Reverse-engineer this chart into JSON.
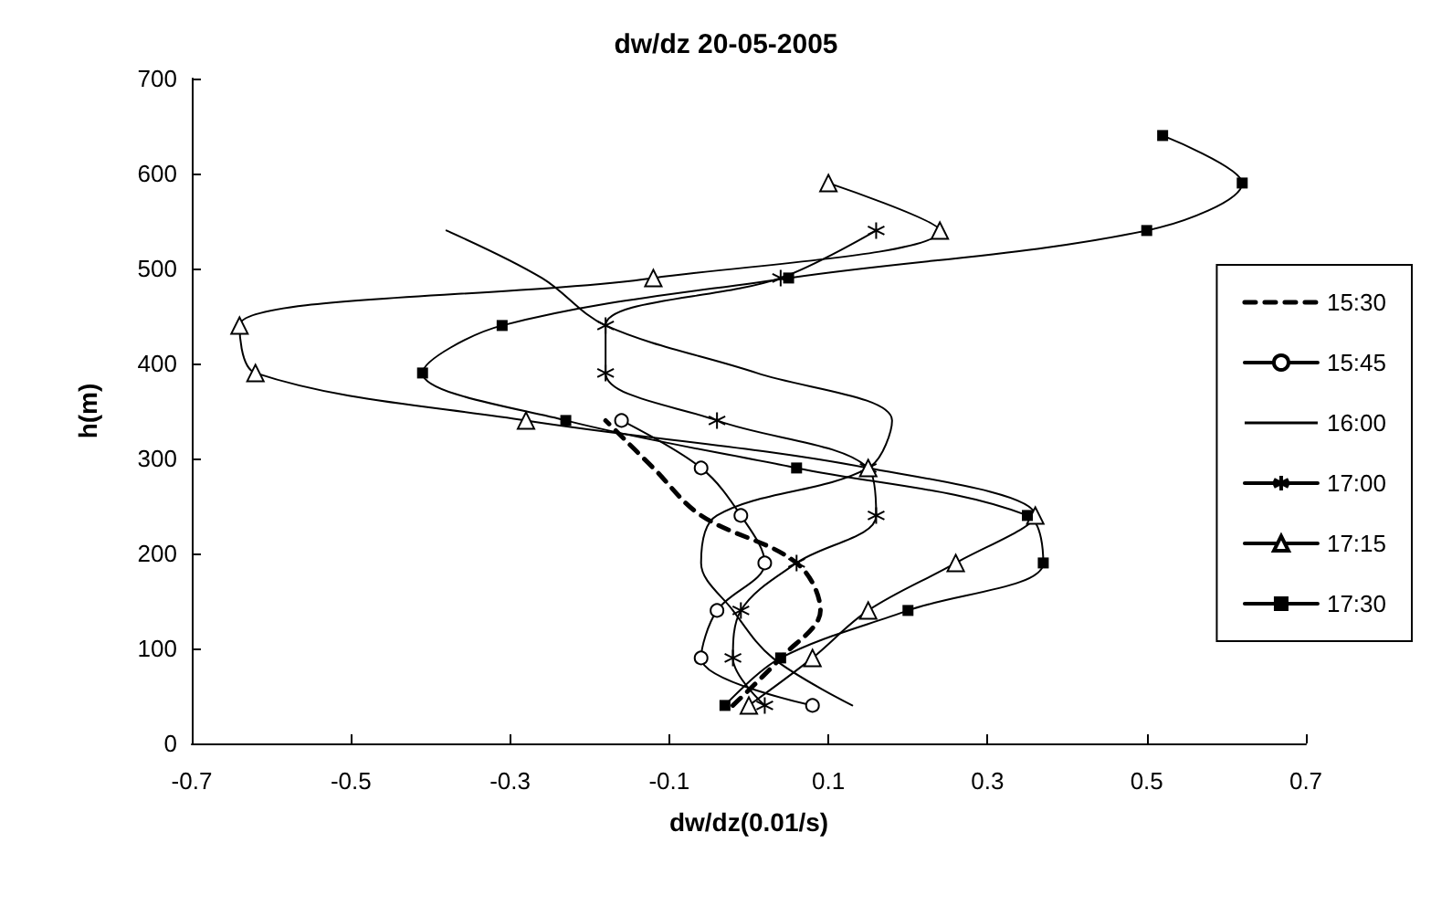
{
  "chart_data": {
    "type": "line",
    "title": "dw/dz 20-05-2005",
    "xlabel": "dw/dz(0.01/s)",
    "ylabel": "h(m)",
    "xlim": [
      -0.7,
      0.7
    ],
    "xticks": [
      -0.7,
      -0.5,
      -0.3,
      -0.1,
      0.1,
      0.3,
      0.5,
      0.7
    ],
    "ylim": [
      0,
      700
    ],
    "yticks": [
      0,
      100,
      200,
      300,
      400,
      500,
      600,
      700
    ],
    "grid": false,
    "legend": "right",
    "series": [
      {
        "name": "15:30",
        "color": "#000000",
        "marker": "none",
        "line_style": "dashed",
        "x": [
          -0.02,
          0.04,
          0.09,
          0.06,
          -0.06,
          -0.12,
          -0.18
        ],
        "values": [
          40,
          90,
          140,
          190,
          240,
          290,
          340
        ]
      },
      {
        "name": "15:45",
        "color": "#000000",
        "marker": "circle",
        "line_style": "solid",
        "x": [
          0.08,
          -0.06,
          -0.04,
          0.02,
          -0.01,
          -0.06,
          -0.16
        ],
        "values": [
          40,
          90,
          140,
          190,
          240,
          290,
          340
        ]
      },
      {
        "name": "16:00",
        "color": "#000000",
        "marker": "none",
        "line_style": "solid",
        "x": [
          0.13,
          0.03,
          -0.02,
          -0.06,
          -0.04,
          0.15,
          0.18,
          0.01,
          -0.18,
          -0.26,
          -0.38
        ],
        "values": [
          40,
          90,
          140,
          190,
          240,
          290,
          340,
          390,
          440,
          490,
          540
        ]
      },
      {
        "name": "17:00",
        "color": "#000000",
        "marker": "cross",
        "line_style": "solid",
        "x": [
          0.02,
          -0.02,
          -0.01,
          0.06,
          0.16,
          0.15,
          -0.04,
          -0.18,
          -0.18,
          0.04,
          0.16
        ],
        "values": [
          40,
          90,
          140,
          190,
          240,
          290,
          340,
          390,
          440,
          490,
          540
        ]
      },
      {
        "name": "17:15",
        "color": "#000000",
        "marker": "triangle",
        "line_style": "solid",
        "x": [
          0.0,
          0.08,
          0.15,
          0.26,
          0.36,
          0.15,
          -0.28,
          -0.62,
          -0.64,
          -0.12,
          0.24,
          0.1
        ],
        "values": [
          40,
          90,
          140,
          190,
          240,
          290,
          340,
          390,
          440,
          490,
          540,
          590
        ]
      },
      {
        "name": "17:30",
        "color": "#000000",
        "marker": "square",
        "line_style": "solid",
        "x": [
          -0.03,
          0.04,
          0.2,
          0.37,
          0.35,
          0.06,
          -0.23,
          -0.41,
          -0.31,
          0.05,
          0.5,
          0.62,
          0.52
        ],
        "values": [
          40,
          90,
          140,
          190,
          240,
          290,
          340,
          390,
          440,
          490,
          540,
          590,
          640
        ]
      }
    ]
  }
}
